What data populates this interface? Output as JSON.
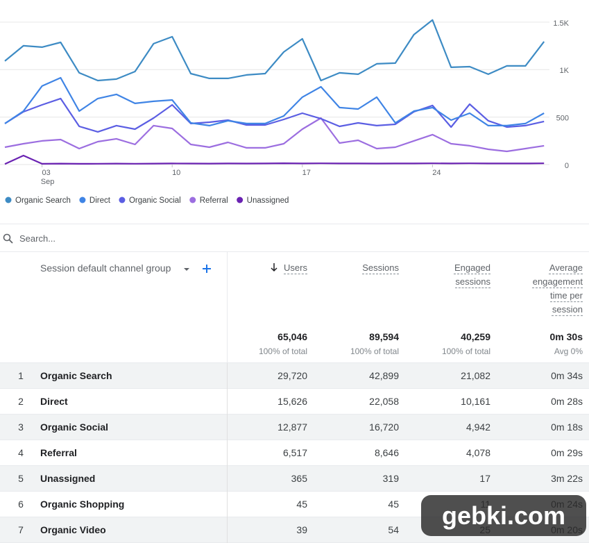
{
  "chart_data": {
    "type": "line",
    "categories": [
      null,
      null,
      "03",
      null,
      null,
      null,
      null,
      null,
      null,
      "10",
      null,
      null,
      null,
      null,
      null,
      null,
      "17",
      null,
      null,
      null,
      null,
      null,
      null,
      "24",
      null,
      null,
      null,
      null,
      null,
      null
    ],
    "x_sublabel": "Sep",
    "ylim": [
      0,
      1550
    ],
    "yticks": [
      0,
      500,
      {
        "value": 1000,
        "label": "1K"
      },
      {
        "value": 1500,
        "label": "1.5K"
      }
    ],
    "grid": true,
    "legend": "bottom-left",
    "series": [
      {
        "name": "Organic Search",
        "color": "#3d8bc4",
        "values": [
          1090,
          1251,
          1236,
          1287,
          966,
          885,
          900,
          980,
          1273,
          1346,
          958,
          907,
          907,
          944,
          958,
          1185,
          1324,
          885,
          966,
          951,
          1061,
          1068,
          1368,
          1522,
          1024,
          1031,
          951,
          1039,
          1039,
          1295
        ]
      },
      {
        "name": "Direct",
        "color": "#3f84e5",
        "values": [
          432,
          563,
          827,
          914,
          563,
          695,
          739,
          644,
          666,
          680,
          439,
          410,
          461,
          432,
          432,
          512,
          710,
          819,
          600,
          585,
          710,
          439,
          563,
          600,
          468,
          541,
          410,
          410,
          432,
          541
        ]
      },
      {
        "name": "Organic Social",
        "color": "#5b5ee3",
        "values": [
          432,
          556,
          629,
          695,
          402,
          344,
          410,
          373,
          490,
          629,
          432,
          446,
          468,
          417,
          417,
          475,
          541,
          483,
          402,
          439,
          410,
          424,
          556,
          622,
          395,
          636,
          461,
          395,
          410,
          454
        ]
      },
      {
        "name": "Referral",
        "color": "#9c6ee0",
        "values": [
          183,
          219,
          249,
          263,
          168,
          241,
          271,
          212,
          410,
          380,
          212,
          183,
          234,
          176,
          176,
          219,
          373,
          490,
          227,
          256,
          168,
          183,
          249,
          315,
          219,
          198,
          161,
          139,
          168,
          198
        ]
      },
      {
        "name": "Unassigned",
        "color": "#6a22b2",
        "values": [
          5,
          95,
          8,
          10,
          8,
          9,
          10,
          9,
          10,
          12,
          11,
          10,
          12,
          11,
          12,
          14,
          12,
          13,
          12,
          12,
          11,
          12,
          12,
          13,
          12,
          13,
          12,
          12,
          12,
          13
        ]
      }
    ]
  },
  "search": {
    "placeholder": "Search..."
  },
  "table": {
    "dimension_header": "Session default channel group",
    "columns": [
      "Users",
      "Sessions",
      "Engaged sessions",
      "Average engagement time per session"
    ],
    "totals": [
      {
        "value": "65,046",
        "note": "100% of total"
      },
      {
        "value": "89,594",
        "note": "100% of total"
      },
      {
        "value": "40,259",
        "note": "100% of total"
      },
      {
        "value": "0m 30s",
        "note": "Avg 0%"
      }
    ],
    "rows": [
      [
        "1",
        "Organic Search",
        "29,720",
        "42,899",
        "21,082",
        "0m 34s"
      ],
      [
        "2",
        "Direct",
        "15,626",
        "22,058",
        "10,161",
        "0m 28s"
      ],
      [
        "3",
        "Organic Social",
        "12,877",
        "16,720",
        "4,942",
        "0m 18s"
      ],
      [
        "4",
        "Referral",
        "6,517",
        "8,646",
        "4,078",
        "0m 29s"
      ],
      [
        "5",
        "Unassigned",
        "365",
        "319",
        "17",
        "3m 22s"
      ],
      [
        "6",
        "Organic Shopping",
        "45",
        "45",
        "11",
        "0m 24s"
      ],
      [
        "7",
        "Organic Video",
        "39",
        "54",
        "25",
        "0m 20s"
      ]
    ]
  },
  "watermark": "gebki.com"
}
